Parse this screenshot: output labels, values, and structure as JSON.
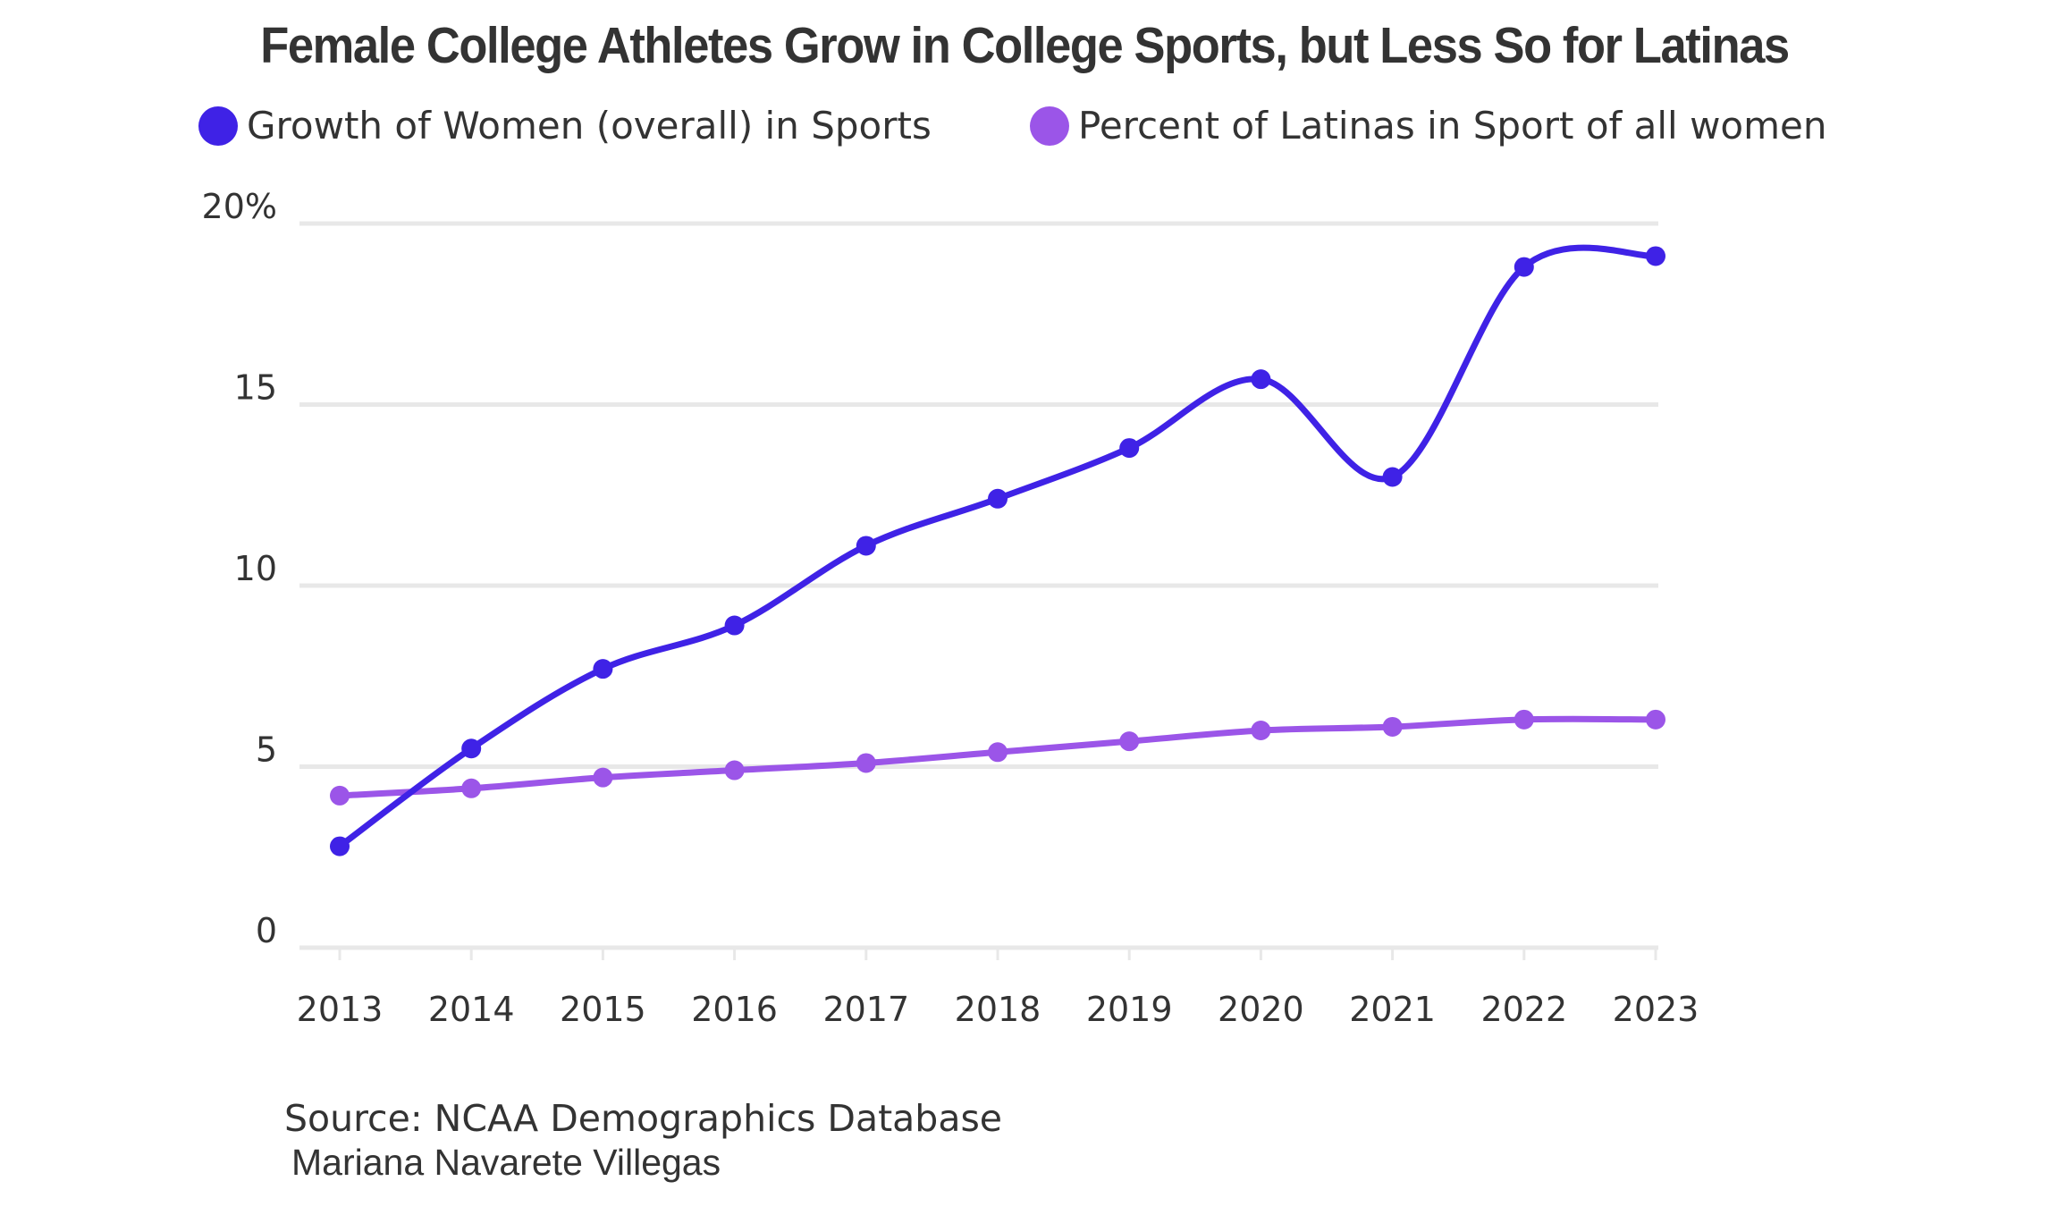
{
  "colors": {
    "series_women": "#3f22e6",
    "series_latinas": "#9b55e8",
    "grid": "#e8e8e8",
    "text": "#333333"
  },
  "source_text": "Source: NCAA Demographics Database",
  "author_text": "Mariana Navarete Villegas",
  "chart_data": {
    "type": "line",
    "title": "Female College Athletes Grow in College Sports, but Less So for Latinas",
    "xlabel": "",
    "ylabel": "",
    "x": [
      "2013",
      "2014",
      "2015",
      "2016",
      "2017",
      "2018",
      "2019",
      "2020",
      "2021",
      "2022",
      "2023"
    ],
    "y_ticks": [
      "0",
      "5",
      "10",
      "15",
      "20%"
    ],
    "ylim": [
      0,
      20
    ],
    "grid": true,
    "legend_position": "top-left",
    "series": [
      {
        "name": "Growth of Women (overall) in Sports",
        "color": "#3f22e6",
        "values": [
          2.8,
          5.5,
          7.7,
          8.9,
          11.1,
          12.4,
          13.8,
          15.7,
          13.0,
          18.8,
          19.1
        ]
      },
      {
        "name": "Percent of Latinas in Sport of all women",
        "color": "#9b55e8",
        "values": [
          4.2,
          4.4,
          4.7,
          4.9,
          5.1,
          5.4,
          5.7,
          6.0,
          6.1,
          6.3,
          6.3
        ]
      }
    ]
  }
}
